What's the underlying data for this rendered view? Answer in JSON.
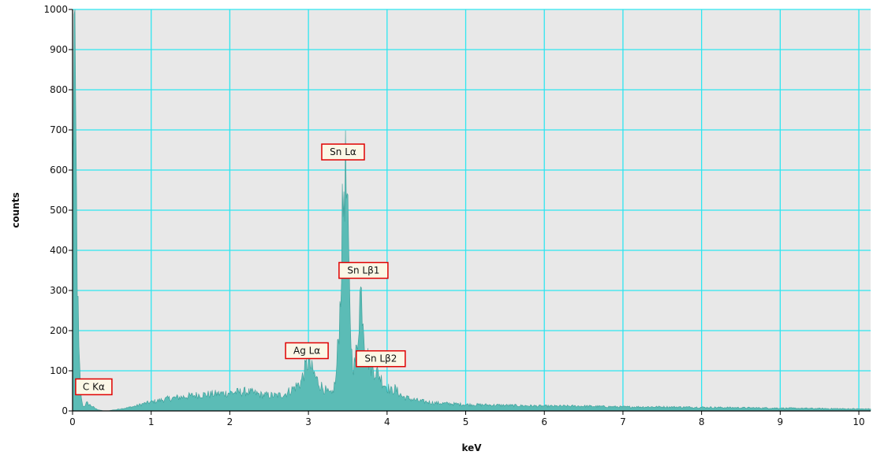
{
  "chart_data": {
    "type": "area",
    "xlabel": "keV",
    "ylabel": "counts",
    "xlim": [
      0,
      10.15
    ],
    "ylim": [
      0,
      1000
    ],
    "x_ticks": [
      0,
      1,
      2,
      3,
      4,
      5,
      6,
      7,
      8,
      9,
      10
    ],
    "y_ticks": [
      0,
      100,
      200,
      300,
      400,
      500,
      600,
      700,
      800,
      900,
      1000
    ],
    "grid": true,
    "colors": {
      "plot_background": "#e8e8e8",
      "grid": "#2ee6f0",
      "series_fill": "#5bbcb6",
      "series_stroke": "#3d9f99",
      "annotation_border": "#e00000",
      "annotation_fill": "#fbf7e6"
    },
    "series": [
      {
        "x": [
          0.0,
          0.02,
          0.04,
          0.06,
          0.08,
          0.1,
          0.12,
          0.14,
          0.18,
          0.22,
          0.26,
          0.3,
          0.35,
          0.4,
          0.45,
          0.5,
          0.55,
          0.6,
          0.7,
          0.8,
          0.9,
          1.0,
          1.1,
          1.2,
          1.4,
          1.6,
          1.8,
          2.0,
          2.2,
          2.3,
          2.4,
          2.6,
          2.7,
          2.8,
          2.9,
          2.95,
          3.0,
          3.05,
          3.1,
          3.15,
          3.2,
          3.25,
          3.3,
          3.35,
          3.4,
          3.43,
          3.46,
          3.49,
          3.52,
          3.55,
          3.58,
          3.62,
          3.66,
          3.69,
          3.72,
          3.76,
          3.8,
          3.85,
          3.9,
          3.95,
          4.0,
          4.05,
          4.1,
          4.15,
          4.2,
          4.3,
          4.4,
          4.6,
          4.8,
          5.0,
          5.5,
          6.0,
          6.5,
          7.0,
          7.5,
          8.0,
          8.5,
          9.0,
          9.5,
          10.0,
          10.15
        ],
        "values": [
          570,
          930,
          700,
          350,
          150,
          60,
          20,
          10,
          20,
          15,
          10,
          5,
          2,
          0,
          0,
          2,
          3,
          5,
          8,
          12,
          18,
          22,
          26,
          30,
          35,
          40,
          42,
          45,
          48,
          45,
          40,
          38,
          42,
          55,
          70,
          100,
          125,
          100,
          80,
          65,
          55,
          45,
          40,
          80,
          250,
          450,
          610,
          520,
          300,
          140,
          110,
          160,
          305,
          260,
          160,
          130,
          110,
          100,
          90,
          70,
          60,
          50,
          55,
          45,
          35,
          30,
          25,
          20,
          18,
          16,
          14,
          12,
          12,
          10,
          10,
          9,
          8,
          7,
          6,
          5,
          5
        ]
      }
    ],
    "annotations": [
      {
        "label": "C Kα",
        "x": 0.27,
        "y": 60
      },
      {
        "label": "Ag Lα",
        "x": 2.98,
        "y": 150
      },
      {
        "label": "Sn Lα",
        "x": 3.44,
        "y": 645
      },
      {
        "label": "Sn Lβ1",
        "x": 3.7,
        "y": 350
      },
      {
        "label": "Sn Lβ2",
        "x": 3.92,
        "y": 130
      }
    ]
  }
}
